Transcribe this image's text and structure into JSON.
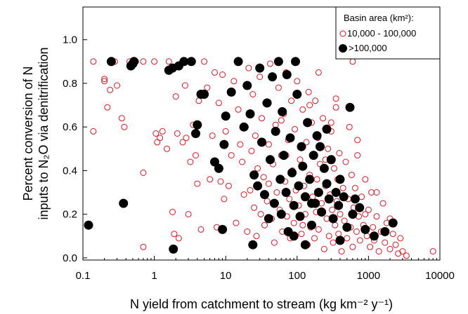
{
  "chart_data": {
    "type": "scatter",
    "title": "",
    "xlabel": "N yield from catchment to stream (kg km⁻² y⁻¹)",
    "ylabel_line1": "Percent conversion of N",
    "ylabel_line2": "inputs to  N₂O via denitrification",
    "xscale": "log",
    "xlim": [
      0.1,
      10000
    ],
    "ylim": [
      -0.01,
      1.15
    ],
    "xticks": [
      0.1,
      1,
      10,
      100,
      1000,
      10000
    ],
    "xtick_labels": [
      "0.1",
      "1",
      "10",
      "100",
      "1000",
      "10000"
    ],
    "yticks": [
      0.0,
      0.2,
      0.4,
      0.6,
      0.8,
      1.0
    ],
    "ytick_labels": [
      "0.0",
      "0.2",
      "0.4",
      "0.6",
      "0.8",
      "1.0"
    ],
    "grid": false,
    "legend_position": "top-right",
    "legend_title": "Basin area (km²):",
    "series": [
      {
        "name": "10,000 - 100,000",
        "marker": "open-circle",
        "color": "#e0141e",
        "points": [
          [
            0.14,
            0.9
          ],
          [
            0.14,
            0.58
          ],
          [
            0.2,
            0.82
          ],
          [
            0.2,
            0.81
          ],
          [
            0.22,
            0.69
          ],
          [
            0.24,
            0.77
          ],
          [
            0.28,
            0.9
          ],
          [
            0.3,
            0.79
          ],
          [
            0.35,
            0.64
          ],
          [
            0.38,
            0.6
          ],
          [
            0.45,
            0.9
          ],
          [
            0.55,
            0.9
          ],
          [
            0.7,
            0.9
          ],
          [
            0.7,
            0.39
          ],
          [
            0.7,
            0.05
          ],
          [
            1.0,
            0.9
          ],
          [
            1.05,
            0.57
          ],
          [
            1.1,
            0.53
          ],
          [
            1.2,
            0.55
          ],
          [
            1.3,
            0.58
          ],
          [
            1.5,
            0.5
          ],
          [
            1.6,
            0.9
          ],
          [
            1.7,
            0.87
          ],
          [
            1.8,
            0.21
          ],
          [
            1.9,
            0.11
          ],
          [
            2.0,
            0.74
          ],
          [
            2.1,
            0.57
          ],
          [
            2.2,
            0.09
          ],
          [
            2.5,
            0.53
          ],
          [
            2.7,
            0.79
          ],
          [
            2.8,
            0.55
          ],
          [
            3.0,
            0.2
          ],
          [
            3.2,
            0.44
          ],
          [
            3.5,
            0.61
          ],
          [
            3.8,
            0.47
          ],
          [
            4.0,
            0.34
          ],
          [
            4.2,
            0.72
          ],
          [
            4.5,
            0.13
          ],
          [
            5.0,
            0.9
          ],
          [
            5.5,
            0.78
          ],
          [
            6.0,
            0.36
          ],
          [
            6.5,
            0.56
          ],
          [
            7.0,
            0.85
          ],
          [
            7.5,
            0.14
          ],
          [
            8.0,
            0.71
          ],
          [
            8.5,
            0.35
          ],
          [
            9.0,
            0.84
          ],
          [
            9.5,
            0.27
          ],
          [
            10,
            0.58
          ],
          [
            11,
            0.33
          ],
          [
            12,
            0.47
          ],
          [
            13,
            0.81
          ],
          [
            14,
            0.16
          ],
          [
            15,
            0.68
          ],
          [
            16,
            0.52
          ],
          [
            17,
            0.44
          ],
          [
            18,
            0.29
          ],
          [
            19,
            0.6
          ],
          [
            20,
            0.12
          ],
          [
            21,
            0.87
          ],
          [
            22,
            0.31
          ],
          [
            23,
            0.49
          ],
          [
            24,
            0.75
          ],
          [
            25,
            0.23
          ],
          [
            26,
            0.56
          ],
          [
            27,
            0.1
          ],
          [
            28,
            0.41
          ],
          [
            30,
            0.83
          ],
          [
            31,
            0.2
          ],
          [
            32,
            0.64
          ],
          [
            34,
            0.37
          ],
          [
            35,
            0.15
          ],
          [
            36,
            0.71
          ],
          [
            38,
            0.26
          ],
          [
            40,
            0.52
          ],
          [
            42,
            0.89
          ],
          [
            44,
            0.18
          ],
          [
            46,
            0.43
          ],
          [
            48,
            0.07
          ],
          [
            50,
            0.61
          ],
          [
            52,
            0.3
          ],
          [
            55,
            0.78
          ],
          [
            57,
            0.22
          ],
          [
            60,
            0.47
          ],
          [
            62,
            0.12
          ],
          [
            65,
            0.66
          ],
          [
            68,
            0.35
          ],
          [
            70,
            0.85
          ],
          [
            72,
            0.19
          ],
          [
            75,
            0.54
          ],
          [
            78,
            0.27
          ],
          [
            80,
            0.09
          ],
          [
            83,
            0.72
          ],
          [
            86,
            0.4
          ],
          [
            90,
            0.16
          ],
          [
            93,
            0.59
          ],
          [
            96,
            0.31
          ],
          [
            100,
            0.81
          ],
          [
            105,
            0.24
          ],
          [
            110,
            0.45
          ],
          [
            115,
            0.11
          ],
          [
            120,
            0.68
          ],
          [
            125,
            0.33
          ],
          [
            130,
            0.2
          ],
          [
            135,
            0.53
          ],
          [
            140,
            0.06
          ],
          [
            145,
            0.76
          ],
          [
            150,
            0.38
          ],
          [
            155,
            0.14
          ],
          [
            160,
            0.62
          ],
          [
            165,
            0.28
          ],
          [
            170,
            0.47
          ],
          [
            175,
            0.09
          ],
          [
            180,
            0.72
          ],
          [
            185,
            0.21
          ],
          [
            190,
            0.36
          ],
          [
            195,
            0.55
          ],
          [
            200,
            0.13
          ],
          [
            210,
            0.43
          ],
          [
            220,
            0.25
          ],
          [
            230,
            0.64
          ],
          [
            240,
            0.04
          ],
          [
            250,
            0.33
          ],
          [
            260,
            0.18
          ],
          [
            270,
            0.5
          ],
          [
            280,
            0.1
          ],
          [
            290,
            0.29
          ],
          [
            300,
            0.58
          ],
          [
            310,
            0.22
          ],
          [
            320,
            0.07
          ],
          [
            330,
            0.41
          ],
          [
            340,
            0.15
          ],
          [
            350,
            0.69
          ],
          [
            360,
            0.26
          ],
          [
            370,
            0.36
          ],
          [
            380,
            0.11
          ],
          [
            390,
            0.48
          ],
          [
            400,
            0.2
          ],
          [
            420,
            0.03
          ],
          [
            440,
            0.32
          ],
          [
            460,
            0.17
          ],
          [
            480,
            0.44
          ],
          [
            500,
            0.09
          ],
          [
            520,
            0.27
          ],
          [
            540,
            0.6
          ],
          [
            560,
            0.14
          ],
          [
            580,
            0.38
          ],
          [
            600,
            0.05
          ],
          [
            620,
            0.23
          ],
          [
            650,
            0.32
          ],
          [
            680,
            0.12
          ],
          [
            700,
            0.47
          ],
          [
            730,
            0.19
          ],
          [
            760,
            0.08
          ],
          [
            800,
            0.28
          ],
          [
            850,
            0.15
          ],
          [
            900,
            0.36
          ],
          [
            950,
            0.1
          ],
          [
            1000,
            0.22
          ],
          [
            1050,
            0.05
          ],
          [
            1100,
            0.3
          ],
          [
            1150,
            0.14
          ],
          [
            1200,
            0.08
          ],
          [
            1300,
            0.19
          ],
          [
            1400,
            0.03
          ],
          [
            1500,
            0.12
          ],
          [
            1600,
            0.25
          ],
          [
            1700,
            0.07
          ],
          [
            1800,
            0.16
          ],
          [
            2000,
            0.04
          ],
          [
            2200,
            0.11
          ],
          [
            2400,
            0.06
          ],
          [
            2600,
            0.02
          ],
          [
            2800,
            0.09
          ],
          [
            3000,
            0.03
          ],
          [
            3400,
            0.01
          ],
          [
            8000,
            0.03
          ],
          [
            600,
            0.9
          ],
          [
            300,
            0.62
          ],
          [
            150,
            0.7
          ],
          [
            70,
            0.47
          ],
          [
            40,
            0.34
          ],
          [
            120,
            0.15
          ],
          [
            250,
            0.45
          ],
          [
            450,
            0.28
          ],
          [
            900,
            0.2
          ],
          [
            2000,
            0.18
          ],
          [
            1300,
            0.3
          ],
          [
            700,
            0.54
          ],
          [
            350,
            0.73
          ],
          [
            200,
            0.85
          ],
          [
            60,
            0.63
          ]
        ]
      },
      {
        "name": ">100,000",
        "marker": "filled-circle",
        "color": "#000000",
        "points": [
          [
            0.12,
            0.15
          ],
          [
            0.25,
            0.9
          ],
          [
            0.37,
            0.25
          ],
          [
            0.47,
            0.88
          ],
          [
            0.5,
            0.89
          ],
          [
            0.52,
            0.9
          ],
          [
            1.6,
            0.86
          ],
          [
            1.8,
            0.87
          ],
          [
            1.85,
            0.04
          ],
          [
            2.2,
            0.88
          ],
          [
            2.6,
            0.9
          ],
          [
            3.3,
            0.9
          ],
          [
            3.8,
            0.57
          ],
          [
            4.0,
            0.61
          ],
          [
            4.5,
            0.75
          ],
          [
            5.0,
            0.75
          ],
          [
            7.0,
            0.44
          ],
          [
            8.0,
            0.41
          ],
          [
            9.0,
            0.13
          ],
          [
            9.5,
            0.52
          ],
          [
            10,
            0.65
          ],
          [
            12,
            0.76
          ],
          [
            15,
            0.9
          ],
          [
            18,
            0.6
          ],
          [
            20,
            0.79
          ],
          [
            22,
            0.66
          ],
          [
            24,
            0.06
          ],
          [
            25,
            0.38
          ],
          [
            28,
            0.33
          ],
          [
            30,
            0.87
          ],
          [
            32,
            0.53
          ],
          [
            35,
            0.29
          ],
          [
            38,
            0.71
          ],
          [
            40,
            0.18
          ],
          [
            42,
            0.45
          ],
          [
            45,
            0.83
          ],
          [
            48,
            0.25
          ],
          [
            50,
            0.58
          ],
          [
            55,
            0.9
          ],
          [
            58,
            0.36
          ],
          [
            60,
            0.2
          ],
          [
            62,
            0.67
          ],
          [
            65,
            0.47
          ],
          [
            70,
            0.3
          ],
          [
            72,
            0.84
          ],
          [
            75,
            0.12
          ],
          [
            80,
            0.55
          ],
          [
            85,
            0.39
          ],
          [
            90,
            0.24
          ],
          [
            95,
            0.9
          ],
          [
            100,
            0.75
          ],
          [
            105,
            0.33
          ],
          [
            110,
            0.19
          ],
          [
            115,
            0.51
          ],
          [
            120,
            0.42
          ],
          [
            130,
            0.28
          ],
          [
            140,
            0.62
          ],
          [
            150,
            0.36
          ],
          [
            160,
            0.15
          ],
          [
            170,
            0.47
          ],
          [
            180,
            0.25
          ],
          [
            190,
            0.56
          ],
          [
            200,
            0.3
          ],
          [
            220,
            0.21
          ],
          [
            240,
            0.41
          ],
          [
            260,
            0.34
          ],
          [
            280,
            0.27
          ],
          [
            300,
            0.45
          ],
          [
            320,
            0.18
          ],
          [
            350,
            0.3
          ],
          [
            380,
            0.24
          ],
          [
            400,
            0.36
          ],
          [
            450,
            0.28
          ],
          [
            500,
            0.14
          ],
          [
            550,
            0.69
          ],
          [
            600,
            0.2
          ],
          [
            650,
            0.27
          ],
          [
            750,
            0.23
          ],
          [
            900,
            0.13
          ],
          [
            1200,
            0.1
          ],
          [
            1700,
            0.12
          ],
          [
            2200,
            0.16
          ],
          [
            400,
            0.08
          ],
          [
            130,
            0.06
          ],
          [
            90,
            0.1
          ],
          [
            260,
            0.59
          ],
          [
            210,
            0.51
          ],
          [
            160,
            0.25
          ]
        ]
      }
    ]
  }
}
